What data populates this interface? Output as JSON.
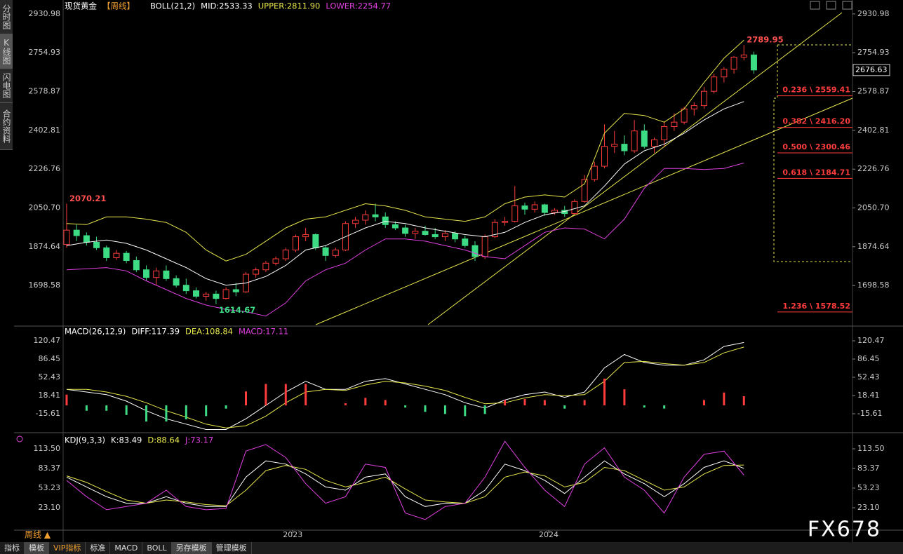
{
  "side_tabs": [
    "分时图",
    "K线图",
    "闪电图",
    "合约资料"
  ],
  "period": "周线 ▲",
  "toolbar": [
    "指标",
    "模板",
    "VIP指标",
    "标准",
    "MACD",
    "BOLL",
    "另存模板",
    "管理模板"
  ],
  "watermark": "FX678",
  "chart_data": [
    {
      "type": "candlestick",
      "title": "现货黄金",
      "subtitle": "【周线】",
      "indicator": "BOLL(21,2)",
      "up_color": "#ff3c3c",
      "down_color": "#3ddc84",
      "xlim": [
        -0.35,
        78.9
      ],
      "ylim": [
        1521,
        2956
      ],
      "yticks": [
        2930.98,
        2754.93,
        2578.87,
        2402.81,
        2226.76,
        {
          "value": 2050.7,
          "label": "2050.70"
        },
        1874.64,
        1698.58
      ],
      "candles": [
        [
          1885,
          2070.21,
          1870,
          1950
        ],
        [
          1950,
          1975,
          1900,
          1925
        ],
        [
          1925,
          1940,
          1880,
          1895
        ],
        [
          1895,
          1920,
          1860,
          1870
        ],
        [
          1870,
          1880,
          1810,
          1825
        ],
        [
          1825,
          1860,
          1815,
          1845
        ],
        [
          1845,
          1855,
          1800,
          1812
        ],
        [
          1812,
          1830,
          1760,
          1770
        ],
        [
          1770,
          1790,
          1720,
          1735
        ],
        [
          1735,
          1780,
          1700,
          1765
        ],
        [
          1765,
          1790,
          1720,
          1730
        ],
        [
          1730,
          1745,
          1690,
          1700
        ],
        [
          1700,
          1730,
          1660,
          1675
        ],
        [
          1675,
          1690,
          1640,
          1650
        ],
        [
          1650,
          1670,
          1630,
          1660
        ],
        [
          1660,
          1675,
          1614.67,
          1640
        ],
        [
          1640,
          1690,
          1635,
          1680
        ],
        [
          1680,
          1710,
          1650,
          1670
        ],
        [
          1670,
          1760,
          1665,
          1750
        ],
        [
          1750,
          1780,
          1735,
          1770
        ],
        [
          1770,
          1810,
          1760,
          1800
        ],
        [
          1800,
          1830,
          1790,
          1820
        ],
        [
          1820,
          1870,
          1810,
          1860
        ],
        [
          1860,
          1930,
          1850,
          1920
        ],
        [
          1920,
          1960,
          1900,
          1930
        ],
        [
          1930,
          1935,
          1860,
          1870
        ],
        [
          1870,
          1880,
          1810,
          1835
        ],
        [
          1835,
          1870,
          1825,
          1860
        ],
        [
          1860,
          1990,
          1855,
          1980
        ],
        [
          1980,
          2010,
          1960,
          1995
        ],
        [
          1995,
          2040,
          1975,
          2020
        ],
        [
          2020,
          2070,
          1990,
          2010
        ],
        [
          2010,
          2030,
          1960,
          1975
        ],
        [
          1975,
          1990,
          1950,
          1960
        ],
        [
          1960,
          1975,
          1920,
          1935
        ],
        [
          1935,
          1960,
          1910,
          1945
        ],
        [
          1945,
          1970,
          1925,
          1930
        ],
        [
          1930,
          1960,
          1910,
          1920
        ],
        [
          1920,
          1950,
          1900,
          1935
        ],
        [
          1935,
          1945,
          1895,
          1910
        ],
        [
          1910,
          1925,
          1870,
          1880
        ],
        [
          1880,
          1900,
          1810,
          1830
        ],
        [
          1830,
          1930,
          1820,
          1920
        ],
        [
          1920,
          2000,
          1915,
          1985
        ],
        [
          1985,
          2010,
          1970,
          1990
        ],
        [
          1990,
          2150,
          1985,
          2060
        ],
        [
          2060,
          2075,
          2020,
          2045
        ],
        [
          2045,
          2080,
          2030,
          2065
        ],
        [
          2065,
          2070,
          2015,
          2030
        ],
        [
          2030,
          2050,
          2020,
          2040
        ],
        [
          2040,
          2060,
          2010,
          2025
        ],
        [
          2025,
          2090,
          2020,
          2080
        ],
        [
          2080,
          2200,
          2075,
          2180
        ],
        [
          2180,
          2260,
          2170,
          2240
        ],
        [
          2240,
          2430,
          2230,
          2330
        ],
        [
          2330,
          2400,
          2300,
          2340
        ],
        [
          2340,
          2380,
          2290,
          2310
        ],
        [
          2310,
          2450,
          2300,
          2400
        ],
        [
          2400,
          2430,
          2320,
          2330
        ],
        [
          2330,
          2370,
          2300,
          2360
        ],
        [
          2360,
          2440,
          2330,
          2420
        ],
        [
          2420,
          2480,
          2400,
          2440
        ],
        [
          2440,
          2510,
          2430,
          2500
        ],
        [
          2500,
          2530,
          2470,
          2515
        ],
        [
          2515,
          2600,
          2500,
          2580
        ],
        [
          2580,
          2660,
          2570,
          2645
        ],
        [
          2645,
          2690,
          2620,
          2680
        ],
        [
          2680,
          2740,
          2660,
          2735
        ],
        [
          2735,
          2789.95,
          2720,
          2745
        ],
        [
          2745,
          2760,
          2660,
          2676.63
        ]
      ],
      "x": [
        0,
        2,
        4,
        6,
        8,
        10,
        12,
        14,
        16,
        18,
        20,
        22,
        24,
        26,
        28,
        30,
        32,
        34,
        36,
        38,
        40,
        42,
        44,
        46,
        48,
        50,
        52,
        54,
        56,
        58,
        60,
        62,
        64,
        66,
        68
      ],
      "series": [
        {
          "label": "MID:2533.33",
          "color": "#ffffff",
          "values": [
            1880,
            1895,
            1905,
            1890,
            1860,
            1820,
            1780,
            1730,
            1700,
            1710,
            1740,
            1790,
            1860,
            1880,
            1920,
            1960,
            1990,
            1980,
            1960,
            1945,
            1930,
            1920,
            1940,
            1985,
            2020,
            2035,
            2060,
            2150,
            2250,
            2310,
            2340,
            2390,
            2450,
            2500,
            2533.33
          ]
        },
        {
          "label": "UPPER:2811.90",
          "color": "#e6e64c",
          "values": [
            1980,
            1975,
            2010,
            2010,
            2000,
            1985,
            1940,
            1860,
            1810,
            1840,
            1900,
            1960,
            2000,
            2010,
            2040,
            2070,
            2060,
            2040,
            2010,
            2000,
            1990,
            2010,
            2070,
            2100,
            2110,
            2100,
            2160,
            2390,
            2480,
            2470,
            2440,
            2500,
            2620,
            2730,
            2811.9
          ]
        },
        {
          "label": "LOWER:2254.77",
          "color": "#e040e0",
          "values": [
            1770,
            1775,
            1780,
            1765,
            1720,
            1680,
            1640,
            1610,
            1590,
            1580,
            1560,
            1620,
            1720,
            1770,
            1800,
            1860,
            1910,
            1910,
            1900,
            1880,
            1860,
            1830,
            1820,
            1880,
            1940,
            1960,
            1955,
            1910,
            2000,
            2140,
            2230,
            2230,
            2225,
            2230,
            2254.77
          ]
        }
      ],
      "fib_levels": [
        {
          "value": 2559.41,
          "label": "0.236 \\ 2559.41"
        },
        {
          "value": 2416.2,
          "label": "0.382 \\ 2416.20"
        },
        {
          "value": 2300.46,
          "label": "0.500 \\ 2300.46"
        },
        {
          "value": 2184.71,
          "label": "0.618 \\ 2184.71"
        },
        {
          "value": 1578.52,
          "label": "1.236 \\ 1578.52"
        }
      ]
    },
    {
      "type": "macd",
      "indicator": "MACD(26,12,9)",
      "up_color": "#ff3c3c",
      "down_color": "#3ddc84",
      "xlim": [
        -0.35,
        78.9
      ],
      "ylim": [
        -48.3,
        141.4
      ],
      "yticks": [
        120.47,
        86.45,
        52.43,
        18.41,
        -15.61
      ],
      "x": [
        0,
        2,
        4,
        6,
        8,
        10,
        12,
        14,
        16,
        18,
        20,
        22,
        24,
        26,
        28,
        30,
        32,
        34,
        36,
        38,
        40,
        42,
        44,
        46,
        48,
        50,
        52,
        54,
        56,
        58,
        60,
        62,
        64,
        66,
        68
      ],
      "series": [
        {
          "label": "DIFF:117.39",
          "color": "#ffffff",
          "type": "line",
          "values": [
            30,
            25,
            20,
            8,
            -10,
            -25,
            -35,
            -45,
            -45,
            -25,
            0,
            25,
            45,
            30,
            30,
            45,
            50,
            40,
            30,
            20,
            5,
            -5,
            10,
            20,
            25,
            15,
            25,
            70,
            95,
            80,
            75,
            75,
            85,
            110,
            117.39
          ]
        },
        {
          "label": "DEA:108.84",
          "color": "#e6e64c",
          "type": "line",
          "values": [
            30,
            30,
            25,
            17,
            5,
            -10,
            -22,
            -35,
            -42,
            -38,
            -20,
            5,
            25,
            30,
            28,
            38,
            45,
            42,
            36,
            28,
            15,
            3,
            5,
            14,
            20,
            18,
            20,
            45,
            80,
            82,
            78,
            75,
            80,
            98,
            108.84
          ]
        },
        {
          "label": "MACD:17.11",
          "color": "#e040e0",
          "type": "bar",
          "values": [
            20,
            -10,
            -10,
            -18,
            -30,
            -30,
            -26,
            -20,
            -6,
            26,
            40,
            40,
            40,
            0,
            4,
            14,
            10,
            -4,
            -12,
            -16,
            -20,
            -16,
            10,
            12,
            10,
            -6,
            10,
            50,
            30,
            -4,
            -6,
            0,
            10,
            24,
            17.11
          ]
        }
      ]
    },
    {
      "type": "line",
      "indicator": "KDJ(9,3,3)",
      "xlim": [
        -0.35,
        78.9
      ],
      "ylim": [
        -15.6,
        135
      ],
      "yticks": [
        {
          "value": 113.5,
          "label": "113.50"
        },
        83.37,
        53.23,
        {
          "value": 23.1,
          "label": "23.10"
        }
      ],
      "xticks": [
        {
          "value": 22.7,
          "label": "2023"
        },
        {
          "value": 48.4,
          "label": "2024"
        }
      ],
      "x": [
        0,
        2,
        4,
        6,
        8,
        10,
        12,
        14,
        16,
        18,
        20,
        22,
        24,
        26,
        28,
        30,
        32,
        34,
        36,
        38,
        40,
        42,
        44,
        46,
        48,
        50,
        52,
        54,
        56,
        58,
        60,
        62,
        64,
        66,
        68
      ],
      "series": [
        {
          "label": "K:83.49",
          "color": "#ffffff",
          "values": [
            70,
            55,
            40,
            30,
            30,
            40,
            30,
            25,
            25,
            70,
            95,
            90,
            75,
            55,
            50,
            70,
            75,
            40,
            25,
            30,
            30,
            50,
            90,
            80,
            65,
            45,
            70,
            95,
            75,
            60,
            40,
            60,
            85,
            95,
            83.49
          ]
        },
        {
          "label": "D:88.64",
          "color": "#e6e64c",
          "values": [
            72,
            62,
            48,
            35,
            30,
            35,
            32,
            28,
            26,
            50,
            80,
            88,
            82,
            65,
            55,
            62,
            70,
            52,
            35,
            32,
            30,
            40,
            70,
            78,
            72,
            55,
            62,
            85,
            80,
            65,
            50,
            55,
            75,
            88,
            88.64
          ]
        },
        {
          "label": "J:73.17",
          "color": "#e040e0",
          "values": [
            65,
            40,
            20,
            25,
            30,
            50,
            25,
            20,
            22,
            110,
            120,
            100,
            60,
            30,
            40,
            90,
            85,
            15,
            5,
            25,
            30,
            70,
            125,
            85,
            50,
            25,
            90,
            115,
            70,
            50,
            15,
            70,
            105,
            110,
            73.17
          ]
        }
      ]
    }
  ]
}
